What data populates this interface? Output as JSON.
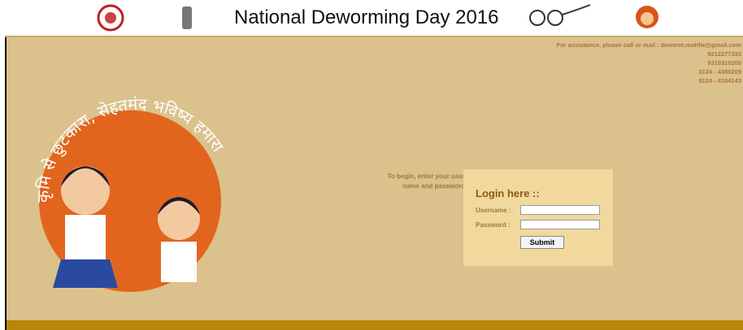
{
  "header": {
    "title": "National Deworming Day 2016"
  },
  "contact": {
    "assistance": "For assistance, please call or mail : deworm.mohfw@gmail.com",
    "phones": [
      "9212277333",
      "9310310200",
      "0124 - 4380209",
      "0124 - 4104143"
    ]
  },
  "banner": {
    "slogan": "कृमि से छुटकारा, सेहतमंद भविष्य हमारा"
  },
  "login": {
    "instruction": "To begin, enter your user name and password",
    "heading": "Login here ::",
    "username_label": "Username :",
    "password_label": "Password :",
    "submit": "Submit"
  }
}
